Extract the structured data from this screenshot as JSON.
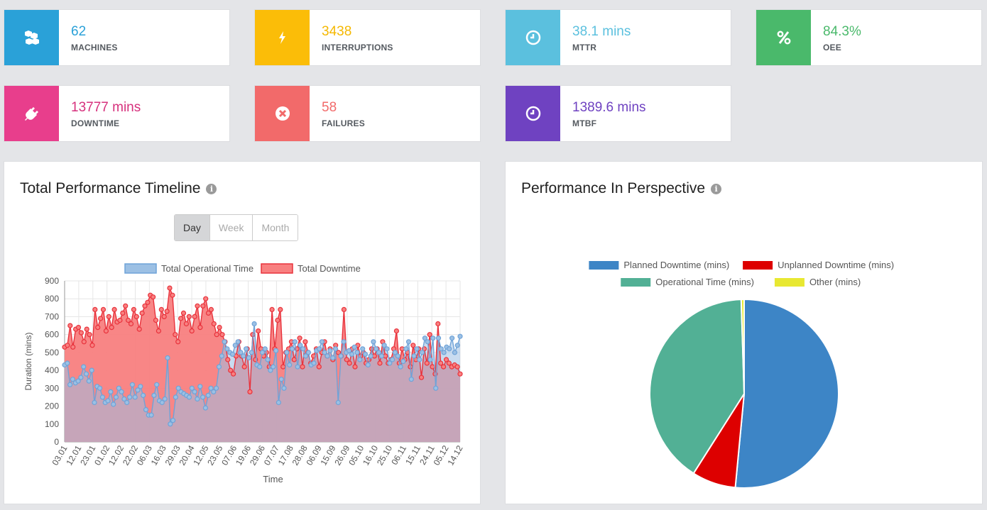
{
  "kpis": [
    {
      "id": "machines",
      "value": "62",
      "label": "MACHINES",
      "color": "#2aa1d8",
      "icon": "cubes-icon"
    },
    {
      "id": "interruptions",
      "value": "3438",
      "label": "INTERRUPTIONS",
      "color": "#fbbd08",
      "icon": "bolt-icon"
    },
    {
      "id": "mttr",
      "value": "38.1 mins",
      "label": "MTTR",
      "color": "#5bc0de",
      "icon": "clock-icon"
    },
    {
      "id": "oee",
      "value": "84.3%",
      "label": "OEE",
      "color": "#4ab96b",
      "icon": "percent-icon"
    },
    {
      "id": "downtime",
      "value": "13777 mins",
      "label": "DOWNTIME",
      "color": "#e83e8c",
      "icon": "plug-icon"
    },
    {
      "id": "failures",
      "value": "58",
      "label": "FAILURES",
      "color": "#f26a6a",
      "icon": "times-circle-icon"
    },
    {
      "id": "mtbf",
      "value": "1389.6 mins",
      "label": "MTBF",
      "color": "#6f42c1",
      "icon": "clock-icon"
    }
  ],
  "timeline_panel": {
    "title": "Total Performance Timeline",
    "info_glyph": "i",
    "buttons": [
      "Day",
      "Week",
      "Month"
    ],
    "active_button": "Day"
  },
  "perspective_panel": {
    "title": "Performance In Perspective",
    "info_glyph": "i"
  },
  "chart_data": [
    {
      "type": "line",
      "title": "",
      "xlabel": "Time",
      "ylabel": "Duration (mins)",
      "ylim": [
        0,
        900
      ],
      "yticks": [
        0,
        100,
        200,
        300,
        400,
        500,
        600,
        700,
        800,
        900
      ],
      "x_tick_labels": [
        "03.01",
        "12.01",
        "23.01",
        "01.02",
        "12.02",
        "22.02",
        "06.03",
        "16.03",
        "29.03",
        "20.04",
        "12.05",
        "23.05",
        "07.06",
        "19.06",
        "29.06",
        "07.07",
        "17.08",
        "28.08",
        "06.09",
        "15.09",
        "26.09",
        "05.10",
        "16.10",
        "25.10",
        "06.11",
        "15.11",
        "24.11",
        "05.12",
        "14.12"
      ],
      "legend_position": "top",
      "grid": true,
      "series": [
        {
          "name": "Total Operational Time",
          "color": "#6fa3d8",
          "fill": "#9cc0e4",
          "values": [
            430,
            440,
            320,
            350,
            330,
            340,
            360,
            420,
            380,
            340,
            400,
            220,
            310,
            300,
            250,
            220,
            230,
            280,
            210,
            250,
            300,
            280,
            240,
            220,
            250,
            320,
            250,
            290,
            310,
            260,
            180,
            150,
            150,
            260,
            320,
            230,
            220,
            240,
            470,
            100,
            120,
            250,
            300,
            280,
            270,
            260,
            250,
            300,
            280,
            240,
            310,
            250,
            190,
            260,
            300,
            280,
            300,
            420,
            480,
            560,
            520,
            500,
            490,
            540,
            560,
            500,
            480,
            520,
            470,
            500,
            660,
            430,
            420,
            500,
            520,
            460,
            400,
            420,
            510,
            220,
            350,
            300,
            500,
            430,
            520,
            560,
            420,
            540,
            520,
            480,
            500,
            430,
            440,
            510,
            520,
            560,
            500,
            480,
            510,
            470,
            520,
            220,
            480,
            560,
            500,
            510,
            490,
            530,
            500,
            460,
            520,
            490,
            430,
            480,
            560,
            520,
            500,
            480,
            540,
            520,
            440,
            460,
            500,
            480,
            420,
            450,
            520,
            560,
            350,
            480,
            520,
            460,
            500,
            580,
            560,
            460,
            580,
            300,
            580,
            520,
            500,
            530,
            520,
            580,
            500,
            540,
            590
          ]
        },
        {
          "name": "Total Downtime",
          "color": "#e8323c",
          "fill": "#f88080",
          "values": [
            530,
            540,
            650,
            530,
            630,
            640,
            610,
            560,
            630,
            600,
            540,
            740,
            640,
            690,
            740,
            620,
            700,
            640,
            740,
            670,
            680,
            720,
            760,
            680,
            660,
            740,
            700,
            630,
            720,
            760,
            780,
            820,
            810,
            680,
            620,
            740,
            700,
            730,
            860,
            820,
            600,
            560,
            690,
            720,
            660,
            700,
            620,
            700,
            760,
            640,
            760,
            800,
            720,
            740,
            660,
            600,
            640,
            600,
            560,
            460,
            400,
            380,
            480,
            560,
            480,
            420,
            520,
            280,
            600,
            460,
            620,
            520,
            480,
            500,
            420,
            740,
            520,
            680,
            740,
            420,
            500,
            520,
            560,
            460,
            520,
            580,
            420,
            560,
            500,
            440,
            480,
            520,
            420,
            500,
            560,
            480,
            520,
            460,
            540,
            500,
            480,
            740,
            460,
            440,
            520,
            420,
            540,
            480,
            500,
            440,
            460,
            520,
            480,
            520,
            440,
            560,
            480,
            440,
            460,
            520,
            620,
            440,
            520,
            460,
            500,
            420,
            540,
            460,
            520,
            360,
            520,
            440,
            600,
            420,
            380,
            660,
            440,
            420,
            460,
            440,
            420,
            430,
            420,
            380
          ]
        }
      ]
    },
    {
      "type": "pie",
      "title": "",
      "legend_position": "top",
      "series": [
        {
          "name": "Planned Downtime (mins)",
          "color": "#3d85c6",
          "value": 51.5
        },
        {
          "name": "Unplanned Downtime (mins)",
          "color": "#dd0000",
          "value": 7.5
        },
        {
          "name": "Operational Time (mins)",
          "color": "#52b095",
          "value": 40.5
        },
        {
          "name": "Other (mins)",
          "color": "#e8e832",
          "value": 0.5
        }
      ]
    }
  ]
}
